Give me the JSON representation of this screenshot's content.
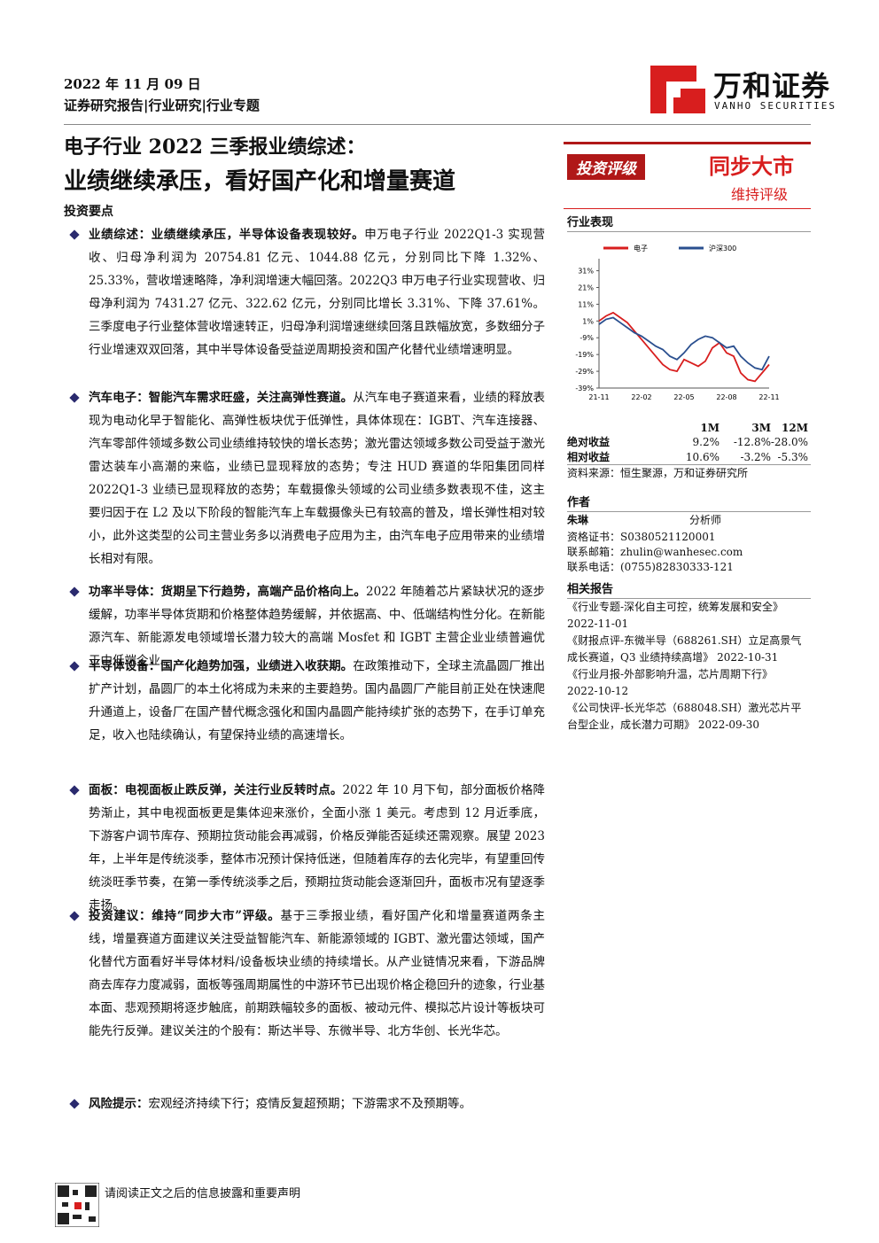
{
  "header": {
    "date": "2022 年 11 月 09 日",
    "report_type": "证券研究报告|行业研究|行业专题",
    "logo_name": "万和证券",
    "logo_en": "VANHO SECURITIES"
  },
  "title": {
    "line1": "电子行业 2022 三季报业绩综述：",
    "line2": "业绩继续承压，看好国产化和增量赛道"
  },
  "key_points_heading": "投资要点",
  "bullets": [
    {
      "lead": "业绩综述：业绩继续承压，半导体设备表现较好。",
      "text": "申万电子行业 2022Q1-3 实现营收、归母净利润为 20754.81 亿元、1044.88 亿元，分别同比下降 1.32%、25.33%，营收增速略降，净利润增速大幅回落。2022Q3 申万电子行业实现营收、归母净利润为 7431.27 亿元、322.62 亿元，分别同比增长 3.31%、下降 37.61%。三季度电子行业整体营收增速转正，归母净利润增速继续回落且跌幅放宽，多数细分子行业增速双双回落，其中半导体设备受益逆周期投资和国产化替代业绩增速明显。"
    },
    {
      "lead": "汽车电子：智能汽车需求旺盛，关注高弹性赛道。",
      "text": "从汽车电子赛道来看，业绩的释放表现为电动化早于智能化、高弹性板块优于低弹性，具体体现在：IGBT、汽车连接器、汽车零部件领域多数公司业绩维持较快的增长态势；激光雷达领域多数公司受益于激光雷达装车小高潮的来临，业绩已显现释放的态势；专注 HUD 赛道的华阳集团同样 2022Q1-3 业绩已显现释放的态势；车载摄像头领域的公司业绩多数表现不佳，这主要归因于在 L2 及以下阶段的智能汽车上车载摄像头已有较高的普及，增长弹性相对较小，此外这类型的公司主营业务多以消费电子应用为主，由汽车电子应用带来的业绩增长相对有限。"
    },
    {
      "lead": "功率半导体：货期呈下行趋势，高端产品价格向上。",
      "text": "2022 年随着芯片紧缺状况的逐步缓解，功率半导体货期和价格整体趋势缓解，并依据高、中、低端结构性分化。在新能源汽车、新能源发电领域增长潜力较大的高端 Mosfet 和 IGBT 主营企业业绩普遍优于中低端企业。"
    },
    {
      "lead": "半导体设备：国产化趋势加强，业绩进入收获期。",
      "text": "在政策推动下，全球主流晶圆厂推出扩产计划，晶圆厂的本土化将成为未来的主要趋势。国内晶圆厂产能目前正处在快速爬升通道上，设备厂在国产替代概念强化和国内晶圆产能持续扩张的态势下，在手订单充足，收入也陆续确认，有望保持业绩的高速增长。"
    },
    {
      "lead": "面板：电视面板止跌反弹，关注行业反转时点。",
      "text": "2022 年 10 月下旬，部分面板价格降势渐止，其中电视面板更是集体迎来涨价，全面小涨 1 美元。考虑到 12 月近季底，下游客户调节库存、预期拉货动能会再减弱，价格反弹能否延续还需观察。展望 2023 年，上半年是传统淡季，整体市况预计保持低迷，但随着库存的去化完毕，有望重回传统淡旺季节奏，在第一季传统淡季之后，预期拉货动能会逐渐回升，面板市况有望逐季走扬。"
    },
    {
      "lead": "投资建议：维持“同步大市”评级。",
      "text": "基于三季报业绩，看好国产化和增量赛道两条主线，增量赛道方面建议关注受益智能汽车、新能源领域的 IGBT、激光雷达领域，国产化替代方面看好半导体材料/设备板块业绩的持续增长。从产业链情况来看，下游品牌商去库存力度减弱，面板等强周期属性的中游环节已出现价格企稳回升的迹象，行业基本面、悲观预期将逐步触底，前期跌幅较多的面板、被动元件、模拟芯片设计等板块可能先行反弹。建议关注的个股有：斯达半导、东微半导、北方华创、长光华芯。"
    },
    {
      "lead": "风险提示：",
      "text": "宏观经济持续下行；疫情反复超预期；下游需求不及预期等。"
    }
  ],
  "rating": {
    "label": "投资评级",
    "value": "同步大市",
    "note": "维持评级"
  },
  "performance": {
    "heading": "行业表现",
    "chart": {
      "type": "line",
      "series": [
        {
          "name": "电子",
          "color": "#d81e1e",
          "values": [
            1,
            4,
            6,
            3,
            0,
            -5,
            -10,
            -15,
            -20,
            -25,
            -28,
            -29,
            -22,
            -24,
            -26,
            -23,
            -15,
            -12,
            -18,
            -20,
            -30,
            -34,
            -35,
            -30,
            -25
          ]
        },
        {
          "name": "沪深300",
          "color": "#2a4f8f",
          "values": [
            -1,
            2,
            3,
            0,
            -3,
            -6,
            -8,
            -11,
            -14,
            -16,
            -20,
            -22,
            -18,
            -13,
            -10,
            -8,
            -9,
            -12,
            -15,
            -14,
            -20,
            -24,
            -27,
            -28,
            -20
          ]
        }
      ],
      "xticks": [
        "21-11",
        "22-02",
        "22-05",
        "22-08",
        "22-11"
      ],
      "ylim": [
        -39,
        35
      ],
      "yticks": [
        {
          "value": 31,
          "label": "31%"
        },
        {
          "value": 21,
          "label": "21%"
        },
        {
          "value": 11,
          "label": "11%"
        },
        {
          "value": 1,
          "label": "1%"
        },
        {
          "value": -9,
          "label": "-9%"
        },
        {
          "value": -19,
          "label": "-19%"
        },
        {
          "value": -29,
          "label": "-29%"
        },
        {
          "value": -39,
          "label": "-39%"
        }
      ]
    },
    "table": {
      "columns": [
        "1M",
        "3M",
        "12M"
      ],
      "rows": [
        [
          "绝对收益",
          "9.2%",
          "-12.8%",
          "-28.0%"
        ],
        [
          "相对收益",
          "10.6%",
          "-3.2%",
          "-5.3%"
        ]
      ]
    },
    "source": "资料来源：恒生聚源，万和证券研究所"
  },
  "author": {
    "heading": "作者",
    "name": "朱琳",
    "role": "分析师",
    "cert": "资格证书：S0380521120001",
    "email": "联系邮箱：zhulin@wanhesec.com",
    "phone": "联系电话：(0755)82830333-121"
  },
  "related": {
    "heading": "相关报告",
    "items": [
      "《行业专题-深化自主可控，统筹发展和安全》",
      "2022-11-01",
      "《财报点评-东微半导（688261.SH）立足高景气成长赛道，Q3 业绩持续高增》 2022-10-31",
      "《行业月报-外部影响升温，芯片周期下行》",
      "2022-10-12",
      "《公司快评-长光华芯（688048.SH）激光芯片平台型企业，成长潜力可期》 2022-09-30"
    ]
  },
  "footer": "请阅读正文之后的信息披露和重要声明"
}
